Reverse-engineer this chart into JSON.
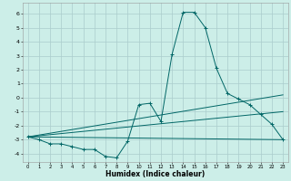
{
  "xlabel": "Humidex (Indice chaleur)",
  "background_color": "#cceee8",
  "grid_color": "#aacccc",
  "line_color": "#006666",
  "xlim": [
    -0.5,
    23.5
  ],
  "ylim": [
    -4.6,
    6.8
  ],
  "yticks": [
    -4,
    -3,
    -2,
    -1,
    0,
    1,
    2,
    3,
    4,
    5,
    6
  ],
  "xticks": [
    0,
    1,
    2,
    3,
    4,
    5,
    6,
    7,
    8,
    9,
    10,
    11,
    12,
    13,
    14,
    15,
    16,
    17,
    18,
    19,
    20,
    21,
    22,
    23
  ],
  "series1_x": [
    0,
    1,
    2,
    3,
    4,
    5,
    6,
    7,
    8,
    9,
    10,
    11,
    12,
    13,
    14,
    15,
    16,
    17,
    18,
    19,
    20,
    21,
    22,
    23
  ],
  "series1_y": [
    -2.8,
    -3.0,
    -3.3,
    -3.3,
    -3.5,
    -3.7,
    -3.7,
    -4.2,
    -4.3,
    -3.1,
    -0.5,
    -0.4,
    -1.7,
    3.1,
    6.1,
    6.1,
    5.0,
    2.1,
    0.3,
    -0.1,
    -0.5,
    -1.2,
    -1.9,
    -3.0
  ],
  "line1_x": [
    0,
    23
  ],
  "line1_y": [
    -2.8,
    -3.0
  ],
  "line2_x": [
    0,
    23
  ],
  "line2_y": [
    -2.8,
    -1.0
  ],
  "line3_x": [
    0,
    23
  ],
  "line3_y": [
    -2.8,
    0.2
  ]
}
